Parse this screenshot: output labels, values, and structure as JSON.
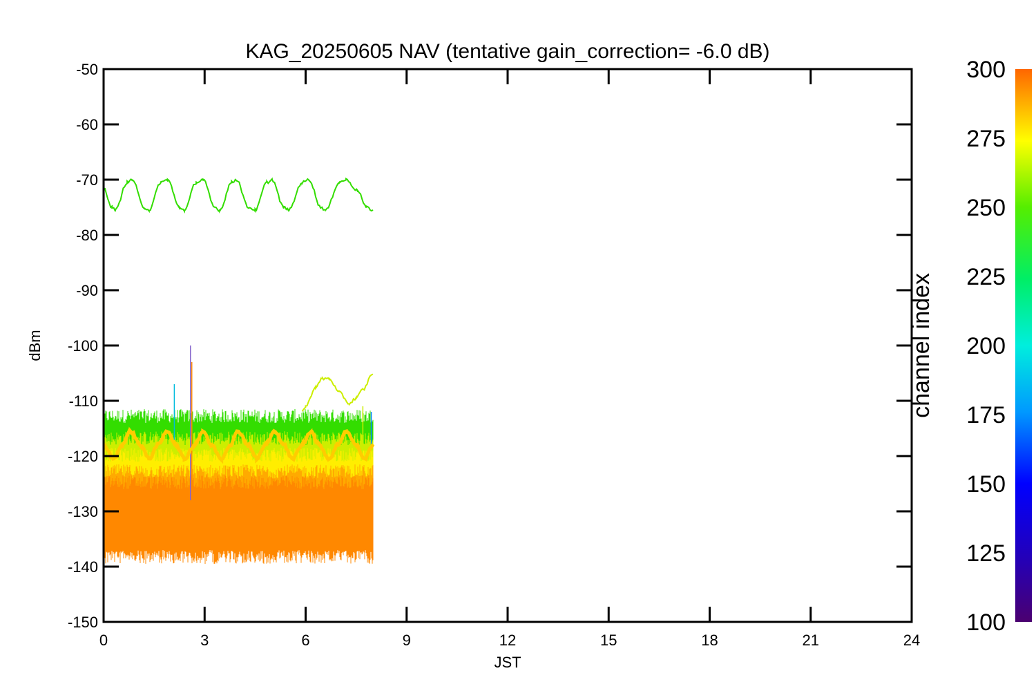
{
  "chart_data": {
    "type": "line",
    "title": "KAG_20250605 NAV (tentative gain_correction= -6.0 dB)",
    "xlabel": "JST",
    "ylabel": "dBm",
    "xlim": [
      0,
      24
    ],
    "ylim": [
      -150,
      -50
    ],
    "xticks": [
      "0",
      "3",
      "6",
      "9",
      "12",
      "15",
      "18",
      "21",
      "24"
    ],
    "yticks": [
      "-50",
      "-60",
      "-70",
      "-80",
      "-90",
      "-100",
      "-110",
      "-120",
      "-130",
      "-140",
      "-150"
    ],
    "grid": false,
    "colorbar": {
      "label": "channel index",
      "range": [
        100,
        300
      ],
      "ticks": [
        "300",
        "275",
        "250",
        "225",
        "200",
        "175",
        "150",
        "125",
        "100"
      ]
    },
    "series": [
      {
        "color": "#33dd00",
        "x": [
          0.0,
          0.25,
          0.35,
          0.7,
          0.85,
          1.2,
          1.35,
          1.7,
          1.9,
          2.25,
          2.4,
          2.75,
          2.95,
          3.3,
          3.45,
          3.8,
          3.95,
          4.3,
          4.5,
          4.85,
          5.0,
          5.35,
          5.5,
          5.9,
          6.1,
          6.45,
          6.6,
          7.0,
          7.2,
          7.55,
          7.8,
          8.0
        ],
        "y": [
          -71.5,
          -75,
          -75.5,
          -70.5,
          -70,
          -75,
          -75.5,
          -70.5,
          -70,
          -75,
          -75.5,
          -70.5,
          -70,
          -75,
          -75.5,
          -70.5,
          -70,
          -75,
          -75.5,
          -70.5,
          -70,
          -75,
          -75.5,
          -70.5,
          -70,
          -75,
          -75.5,
          -70.5,
          -70,
          -72,
          -75,
          -75.5
        ]
      },
      {
        "color": "#ccee00",
        "x": [
          5.9,
          6.0,
          6.3,
          6.5,
          6.7,
          7.0,
          7.3,
          7.5,
          7.7,
          8.0
        ],
        "y": [
          -112,
          -111,
          -107.5,
          -106,
          -106,
          -108.5,
          -110.5,
          -109.5,
          -108,
          -105
        ]
      },
      {
        "color": "#ffcc00",
        "x": [
          0.0,
          0.3,
          0.55,
          0.8,
          1.1,
          1.35,
          1.6,
          1.9,
          2.15,
          2.4,
          2.7,
          2.95,
          3.2,
          3.5,
          3.75,
          4.0,
          4.3,
          4.55,
          4.8,
          5.1,
          5.35,
          5.6,
          5.9,
          6.15,
          6.4,
          6.7,
          6.95,
          7.2,
          7.5,
          7.75,
          8.0
        ],
        "y": [
          -118,
          -120.5,
          -118,
          -115.5,
          -118,
          -120.5,
          -118,
          -115.5,
          -118,
          -120.5,
          -118,
          -115.5,
          -118,
          -120.5,
          -118,
          -115.5,
          -118,
          -120.5,
          -118,
          -115.5,
          -118,
          -120.5,
          -118,
          -115.5,
          -118,
          -120.5,
          -118,
          -115.5,
          -118,
          -120.5,
          -118
        ]
      }
    ],
    "noise_bands": [
      {
        "color": "#33dd00",
        "x": [
          0,
          8
        ],
        "y": [
          -119,
          -114
        ]
      },
      {
        "color": "#ccee00",
        "x": [
          0,
          8
        ],
        "y": [
          -123,
          -118
        ]
      },
      {
        "color": "#ffee00",
        "x": [
          0,
          8
        ],
        "y": [
          -126,
          -121
        ]
      },
      {
        "color": "#ffaa00",
        "x": [
          0,
          8
        ],
        "y": [
          -129,
          -124
        ]
      },
      {
        "color": "#ff8800",
        "x": [
          0,
          8
        ],
        "y": [
          -137,
          -126
        ]
      }
    ],
    "spikes": [
      {
        "x": 2.58,
        "y_top": -100,
        "y_bottom": -128,
        "color": "#8866cc"
      },
      {
        "x": 2.62,
        "y_top": -103,
        "y_bottom": -128,
        "color": "#ff8800"
      },
      {
        "x": 2.1,
        "y_top": -107,
        "y_bottom": -118,
        "color": "#00bbdd"
      },
      {
        "x": 7.95,
        "y_top": -112,
        "y_bottom": -118,
        "color": "#0088ff"
      },
      {
        "x": 7.7,
        "y_top": -111,
        "y_bottom": -118,
        "color": "#ccee00"
      }
    ]
  }
}
